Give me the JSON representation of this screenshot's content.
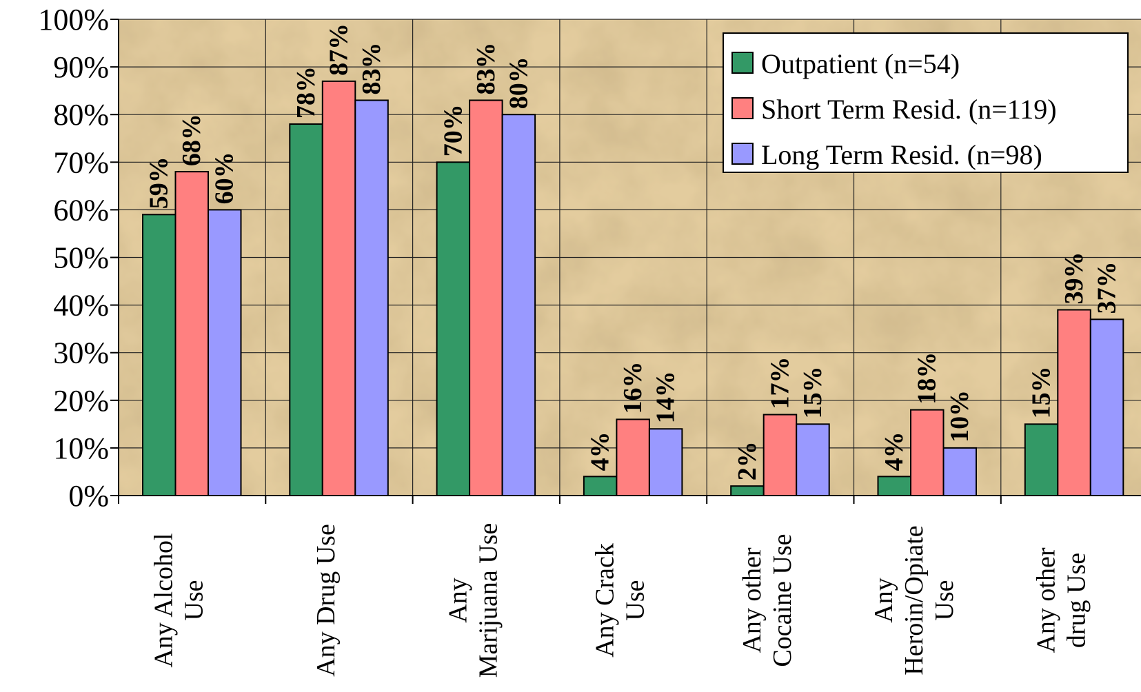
{
  "chart_data": {
    "type": "bar",
    "categories": [
      [
        "Any Alcohol",
        "Use"
      ],
      [
        "Any Drug Use"
      ],
      [
        "Any",
        "Marijuana Use"
      ],
      [
        "Any Crack",
        "Use"
      ],
      [
        "Any other",
        "Cocaine Use"
      ],
      [
        "Any",
        "Heroin/Opiate",
        "Use"
      ],
      [
        "Any other",
        "drug Use"
      ]
    ],
    "series": [
      {
        "name": "Outpatient (n=54)",
        "color": "#339966",
        "values": [
          59,
          78,
          70,
          4,
          2,
          4,
          15
        ],
        "labels": [
          "59%",
          "78%",
          "70%",
          "4%",
          "2%",
          "4%",
          "15%"
        ]
      },
      {
        "name": "Short Term Resid. (n=119)",
        "color": "#FF8080",
        "values": [
          68,
          87,
          83,
          16,
          17,
          18,
          39
        ],
        "labels": [
          "68%",
          "87%",
          "83%",
          "16%",
          "17%",
          "18%",
          "39%"
        ]
      },
      {
        "name": "Long Term Resid. (n=98)",
        "color": "#9999FF",
        "values": [
          60,
          83,
          80,
          14,
          15,
          10,
          37
        ],
        "labels": [
          "60%",
          "83%",
          "80%",
          "14%",
          "15%",
          "10%",
          "37%"
        ]
      }
    ],
    "yticks": [
      "0%",
      "10%",
      "20%",
      "30%",
      "40%",
      "50%",
      "60%",
      "70%",
      "80%",
      "90%",
      "100%"
    ],
    "ylim": [
      0,
      100
    ],
    "grid": true,
    "legend_position": "top-right",
    "colors": {
      "plot_background": "#E3CC9E",
      "grid": "#222222",
      "axis": "#000000"
    }
  }
}
